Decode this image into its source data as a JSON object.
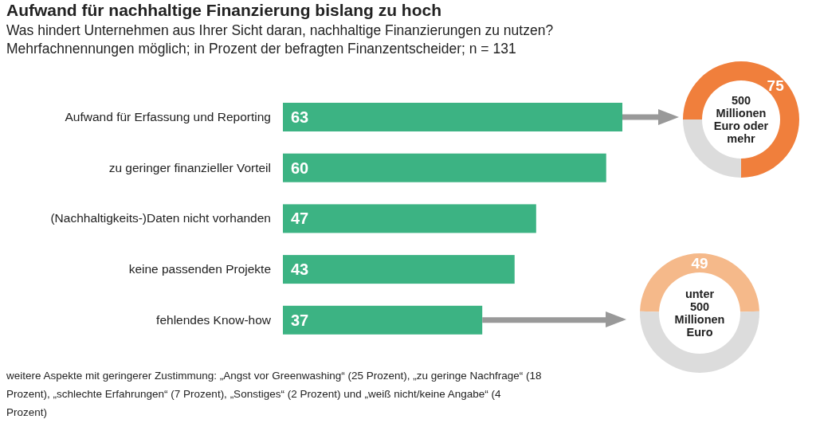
{
  "chart_data": [
    {
      "type": "bar",
      "orientation": "horizontal",
      "title": "Aufwand für nachhaltige Finanzierung bislang zu hoch",
      "subtitle": "Was hindert Unternehmen aus Ihrer Sicht daran, nachhaltige Finanzierungen zu nutzen?\nMehrfachnennungen möglich; in Prozent der befragten Finanzentscheider; n = 131",
      "categories": [
        "Aufwand für Erfassung und Reporting",
        "zu geringer finanzieller Vorteil",
        "(Nachhaltigkeits-)Daten nicht vorhanden",
        "keine passenden Projekte",
        "fehlendes Know-how"
      ],
      "values": [
        63,
        60,
        47,
        43,
        37
      ],
      "color": "#3cb383",
      "data_labels": true,
      "annotations": [
        "weitere Aspekte mit geringerer Zustimmung: „Angst vor Greenwashing“ (25 Prozent), „zu geringe Nachfrage“ (18 Prozent), „schlechte Erfahrungen“ (7 Prozent), „Sonstiges“ (2 Prozent) und „weiß nicht/keine Angabe“ (4 Prozent)"
      ]
    },
    {
      "type": "donut",
      "title": "500\nMillionen\nEuro oder\nmehr",
      "categories": [
        null,
        null
      ],
      "values": [
        75,
        25
      ],
      "colors": [
        "#f07f3c",
        "#dcdcdc"
      ],
      "value_labels": [
        "75",
        null
      ]
    },
    {
      "type": "donut",
      "title": "unter\n500\nMillionen\nEuro",
      "categories": [
        null,
        null
      ],
      "values": [
        49,
        51
      ],
      "colors": [
        "#f5b98a",
        "#dcdcdc"
      ],
      "value_labels": [
        "49",
        null
      ]
    }
  ]
}
